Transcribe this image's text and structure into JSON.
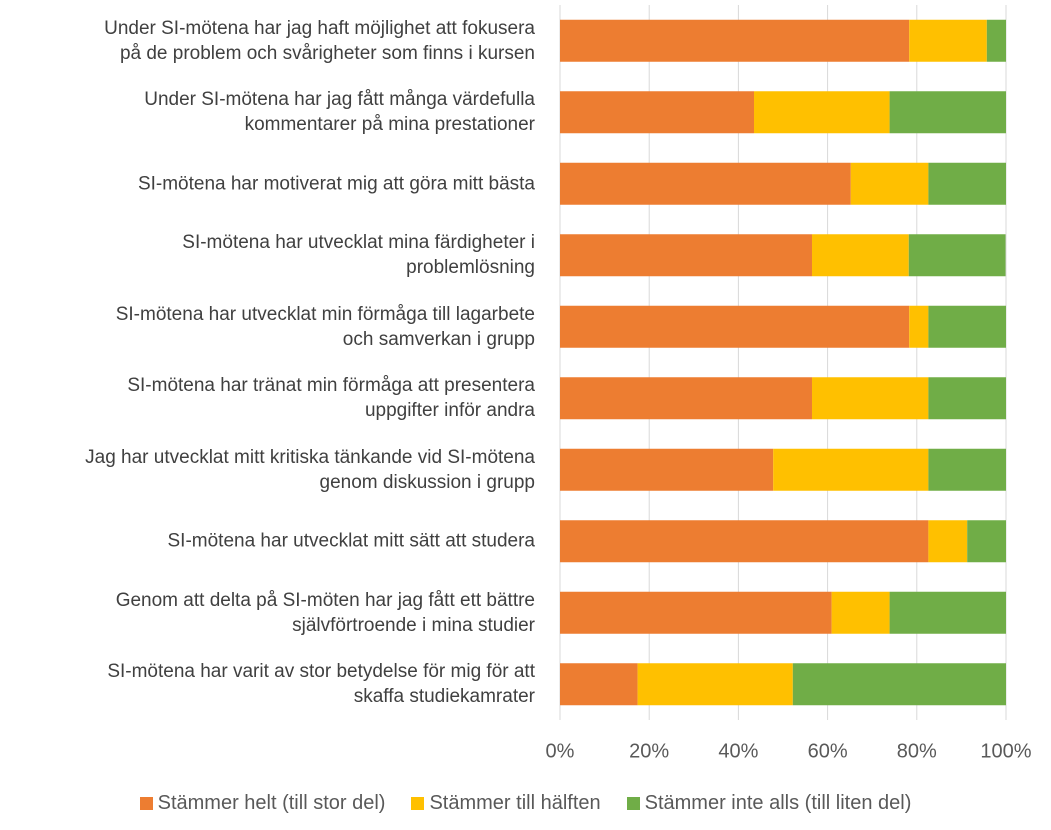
{
  "chart_data": {
    "type": "stacked_barh",
    "categories": [
      "Under SI-mötena har jag haft möjlighet att fokusera\npå de problem och svårigheter som finns i kursen",
      "Under SI-mötena har jag fått många värdefulla\nkommentarer på mina prestationer",
      "SI-mötena har motiverat mig att göra mitt bästa",
      "SI-mötena har utvecklat mina färdigheter i\nproblemlösning",
      "SI-mötena har utvecklat min förmåga till lagarbete\noch samverkan i grupp",
      "SI-mötena har tränat min förmåga att presentera\nuppgifter inför andra",
      "Jag har utvecklat mitt kritiska tänkande vid SI-mötena\ngenom diskussion i grupp",
      "SI-mötena har utvecklat mitt sätt att studera",
      "Genom att delta på SI-möten har jag fått ett bättre\nsjälvförtroende i mina studier",
      "SI-mötena har varit av stor betydelse för mig för att\nskaffa studiekamrater"
    ],
    "series": [
      {
        "name": "Stämmer helt (till stor del)",
        "color": "#ED7D31",
        "values": [
          78.3,
          43.5,
          65.2,
          56.5,
          78.3,
          56.5,
          47.8,
          82.6,
          60.9,
          17.4
        ]
      },
      {
        "name": "Stämmer till hälften",
        "color": "#FFC000",
        "values": [
          17.4,
          30.4,
          17.4,
          21.7,
          4.3,
          26.1,
          34.8,
          8.7,
          13.0,
          34.8
        ]
      },
      {
        "name": "Stämmer inte alls (till liten del)",
        "color": "#70AD47",
        "values": [
          4.3,
          26.1,
          17.4,
          21.7,
          17.4,
          17.4,
          17.4,
          8.7,
          26.1,
          47.8
        ]
      }
    ],
    "xlim": [
      0,
      100
    ],
    "xticks": [
      {
        "value": 0,
        "label": "0%"
      },
      {
        "value": 20,
        "label": "20%"
      },
      {
        "value": 40,
        "label": "40%"
      },
      {
        "value": 60,
        "label": "60%"
      },
      {
        "value": 80,
        "label": "80%"
      },
      {
        "value": 100,
        "label": "100%"
      }
    ],
    "grid": true,
    "legend": "bottom"
  }
}
